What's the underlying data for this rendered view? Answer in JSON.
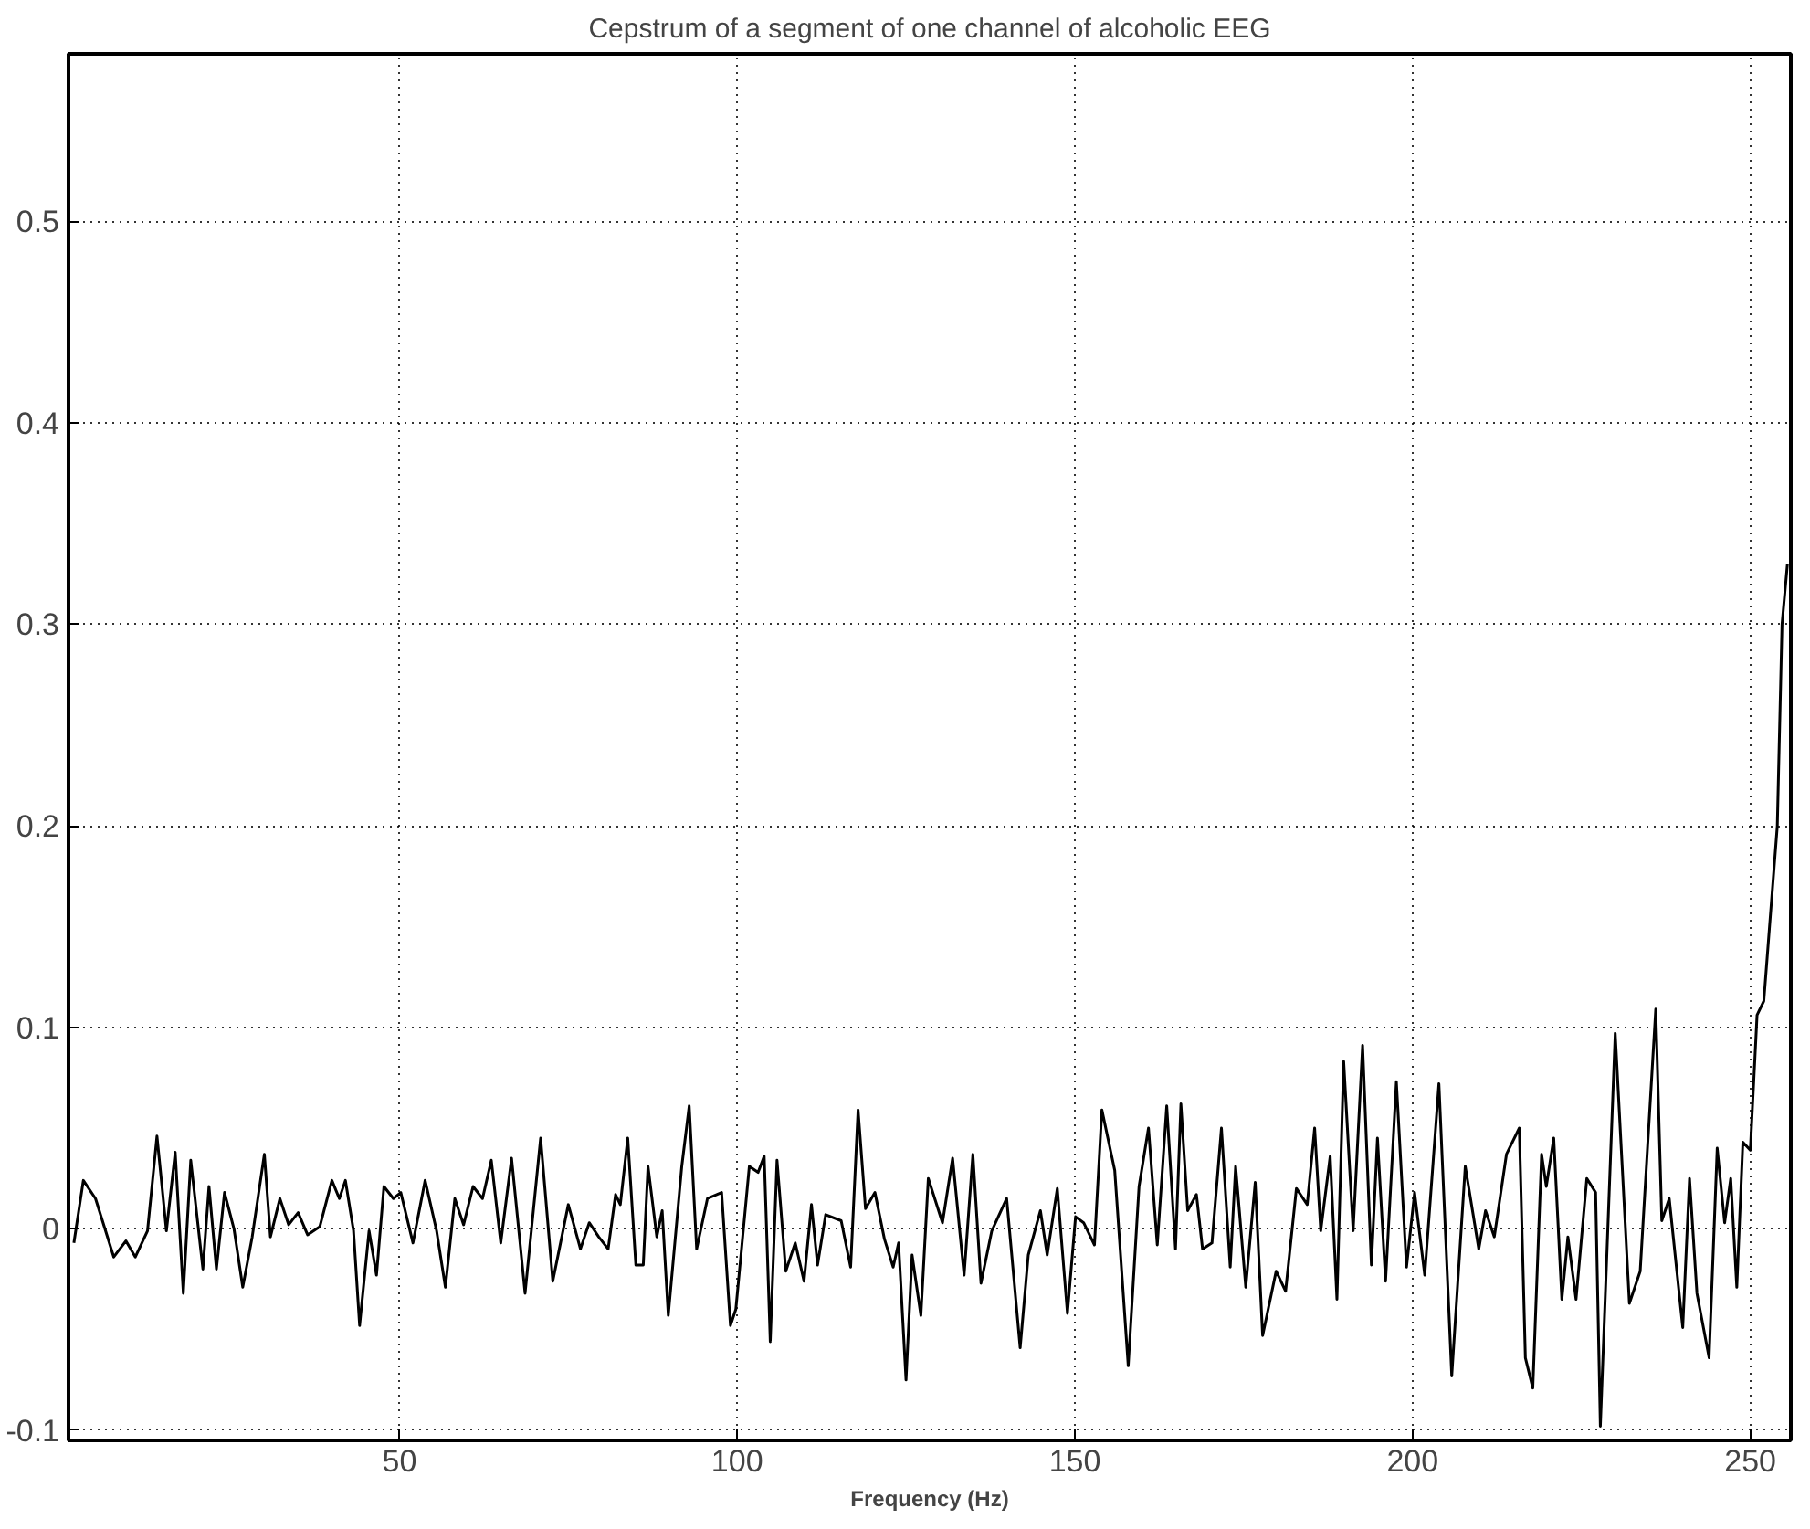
{
  "chart_data": {
    "type": "line",
    "title": "Cepstrum of a segment of one channel of alcoholic EEG",
    "xlabel": "Frequency (Hz)",
    "xlim": [
      1,
      256
    ],
    "ylim": [
      -0.105,
      0.583
    ],
    "xticks": [
      50,
      100,
      150,
      200,
      250
    ],
    "yticks": [
      -0.1,
      0,
      0.1,
      0.2,
      0.3,
      0.4,
      0.5
    ],
    "grid": true,
    "line_style": "solid",
    "series": [
      {
        "color": "#000000",
        "x": [
          1.8,
          3.2,
          5,
          7.7,
          9.5,
          10.9,
          12.7,
          14.1,
          15.5,
          16.8,
          18,
          19.1,
          20.9,
          21.8,
          22.9,
          24.1,
          25.5,
          26.8,
          28.2,
          30,
          30.9,
          32.3,
          33.6,
          35,
          36.4,
          38.2,
          40,
          41.1,
          42,
          43.2,
          44.1,
          45.5,
          46.6,
          47.7,
          49.1,
          50.2,
          52,
          53.8,
          55.5,
          56.8,
          58.2,
          59.5,
          60.9,
          62.3,
          63.6,
          65,
          66.6,
          68.6,
          70.9,
          72.7,
          75,
          76.8,
          78.1,
          79.5,
          80.9,
          82,
          82.7,
          83.8,
          85,
          86.1,
          86.8,
          88.1,
          88.9,
          89.8,
          91.8,
          92.9,
          94,
          95.6,
          97.7,
          99,
          99.8,
          101.8,
          103.1,
          104,
          104.9,
          105.9,
          107.2,
          108.6,
          109.9,
          111,
          111.9,
          113.1,
          115.4,
          116.8,
          117.9,
          119,
          120.4,
          121.8,
          123.1,
          123.9,
          125,
          125.9,
          127.2,
          128.3,
          130.4,
          131.9,
          133.6,
          134.9,
          136.1,
          137.7,
          139.9,
          141.9,
          143.1,
          144.9,
          145.9,
          147.4,
          148.9,
          150.1,
          151.3,
          152.9,
          154,
          155.9,
          157.9,
          159.5,
          160.9,
          162.2,
          163.6,
          164.9,
          165.7,
          166.7,
          168,
          168.9,
          170.3,
          171.7,
          173,
          173.8,
          175.3,
          176.7,
          177.8,
          179.8,
          181.2,
          182.8,
          184.4,
          185.5,
          186.4,
          187.8,
          188.8,
          189.8,
          191.2,
          192.6,
          193.9,
          194.8,
          196,
          197.6,
          199.1,
          200.3,
          201.8,
          203.9,
          205.8,
          207.8,
          209.8,
          210.8,
          212.1,
          213.9,
          215.8,
          216.7,
          217.8,
          219.1,
          219.8,
          220.9,
          222.1,
          223,
          224.2,
          225.8,
          227.1,
          227.8,
          230,
          232.1,
          233.7,
          236,
          236.9,
          238,
          240,
          241,
          242.1,
          243.9,
          245.1,
          246.2,
          247.1,
          248,
          248.9,
          250,
          251,
          252,
          254,
          254.7,
          255.5
        ],
        "values": [
          -0.007,
          0.024,
          0.015,
          -0.014,
          -0.006,
          -0.014,
          -0.001,
          0.046,
          -0.001,
          0.038,
          -0.032,
          0.034,
          -0.02,
          0.021,
          -0.02,
          0.018,
          0,
          -0.029,
          -0.004,
          0.037,
          -0.004,
          0.015,
          0.002,
          0.008,
          -0.003,
          0.001,
          0.024,
          0.015,
          0.024,
          -0.001,
          -0.048,
          -0.001,
          -0.023,
          0.021,
          0.015,
          0.018,
          -0.007,
          0.024,
          -0.001,
          -0.029,
          0.015,
          0.002,
          0.021,
          0.015,
          0.034,
          -0.007,
          0.035,
          -0.032,
          0.045,
          -0.026,
          0.012,
          -0.01,
          0.003,
          -0.004,
          -0.01,
          0.017,
          0.012,
          0.045,
          -0.018,
          -0.018,
          0.031,
          -0.004,
          0.009,
          -0.043,
          0.031,
          0.061,
          -0.01,
          0.015,
          0.018,
          -0.048,
          -0.04,
          0.031,
          0.028,
          0.036,
          -0.056,
          0.034,
          -0.021,
          -0.007,
          -0.026,
          0.012,
          -0.018,
          0.007,
          0.004,
          -0.019,
          0.059,
          0.01,
          0.018,
          -0.005,
          -0.019,
          -0.007,
          -0.075,
          -0.013,
          -0.043,
          0.025,
          0.003,
          0.035,
          -0.023,
          0.037,
          -0.027,
          -0.001,
          0.015,
          -0.059,
          -0.013,
          0.009,
          -0.013,
          0.02,
          -0.042,
          0.006,
          0.003,
          -0.008,
          0.059,
          0.029,
          -0.068,
          0.021,
          0.05,
          -0.008,
          0.061,
          -0.01,
          0.062,
          0.009,
          0.017,
          -0.01,
          -0.007,
          0.05,
          -0.019,
          0.031,
          -0.029,
          0.023,
          -0.053,
          -0.021,
          -0.031,
          0.02,
          0.012,
          0.05,
          -0.001,
          0.036,
          -0.035,
          0.083,
          -0.001,
          0.091,
          -0.018,
          0.045,
          -0.026,
          0.073,
          -0.019,
          0.018,
          -0.023,
          0.072,
          -0.073,
          0.031,
          -0.01,
          0.009,
          -0.004,
          0.037,
          0.05,
          -0.064,
          -0.079,
          0.037,
          0.021,
          0.045,
          -0.035,
          -0.004,
          -0.035,
          0.025,
          0.018,
          -0.098,
          0.097,
          -0.037,
          -0.021,
          0.109,
          0.004,
          0.015,
          -0.049,
          0.025,
          -0.032,
          -0.064,
          0.04,
          0.003,
          0.025,
          -0.029,
          0.043,
          0.039,
          0.106,
          0.113,
          0.2,
          0.3,
          0.33
        ]
      }
    ]
  }
}
